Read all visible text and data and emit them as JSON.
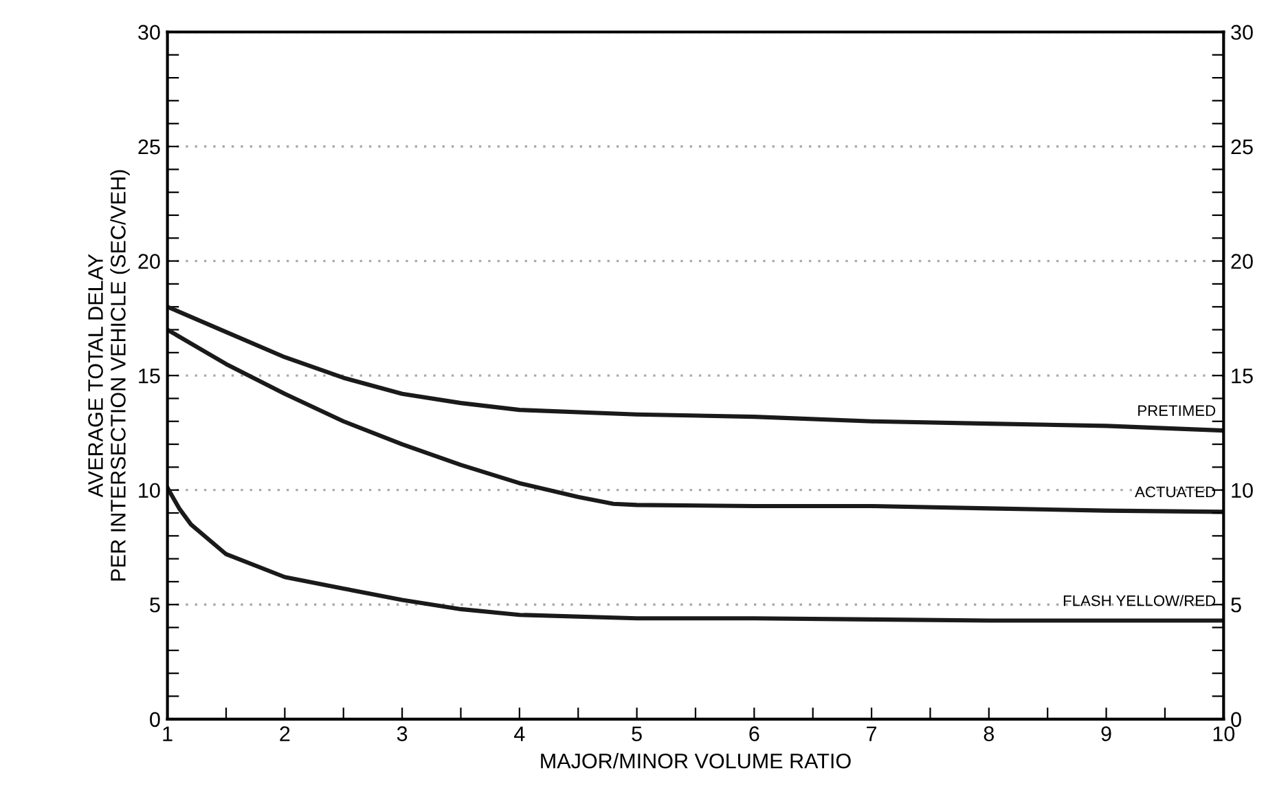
{
  "chart_data": {
    "type": "line",
    "xlabel": "MAJOR/MINOR VOLUME RATIO",
    "ylabel": "AVERAGE TOTAL DELAY\nPER INTERSECTION VEHICLE (SEC/VEH)",
    "xlim": [
      1,
      10
    ],
    "ylim": [
      0,
      30
    ],
    "y2lim": [
      0,
      30
    ],
    "xticks": [
      1,
      {
        "value": 1.5,
        "label": null
      },
      2,
      {
        "value": 2.5,
        "label": null
      },
      3,
      {
        "value": 3.5,
        "label": null
      },
      4,
      {
        "value": 4.5,
        "label": null
      },
      5,
      {
        "value": 5.5,
        "label": null
      },
      6,
      {
        "value": 6.5,
        "label": null
      },
      7,
      {
        "value": 7.5,
        "label": null
      },
      8,
      {
        "value": 8.5,
        "label": null
      },
      9,
      {
        "value": 9.5,
        "label": null
      },
      10
    ],
    "yticks": [
      0,
      {
        "value": 1,
        "label": null
      },
      {
        "value": 2,
        "label": null
      },
      {
        "value": 3,
        "label": null
      },
      {
        "value": 4,
        "label": null
      },
      5,
      {
        "value": 6,
        "label": null
      },
      {
        "value": 7,
        "label": null
      },
      {
        "value": 8,
        "label": null
      },
      {
        "value": 9,
        "label": null
      },
      10,
      {
        "value": 11,
        "label": null
      },
      {
        "value": 12,
        "label": null
      },
      {
        "value": 13,
        "label": null
      },
      {
        "value": 14,
        "label": null
      },
      15,
      {
        "value": 16,
        "label": null
      },
      {
        "value": 17,
        "label": null
      },
      {
        "value": 18,
        "label": null
      },
      {
        "value": 19,
        "label": null
      },
      20,
      {
        "value": 21,
        "label": null
      },
      {
        "value": 22,
        "label": null
      },
      {
        "value": 23,
        "label": null
      },
      {
        "value": 24,
        "label": null
      },
      25,
      {
        "value": 26,
        "label": null
      },
      {
        "value": 27,
        "label": null
      },
      {
        "value": 28,
        "label": null
      },
      {
        "value": 29,
        "label": null
      },
      30
    ],
    "y2ticks": [
      0,
      {
        "value": 1,
        "label": null
      },
      {
        "value": 2,
        "label": null
      },
      {
        "value": 3,
        "label": null
      },
      {
        "value": 4,
        "label": null
      },
      5,
      {
        "value": 6,
        "label": null
      },
      {
        "value": 7,
        "label": null
      },
      {
        "value": 8,
        "label": null
      },
      {
        "value": 9,
        "label": null
      },
      10,
      {
        "value": 11,
        "label": null
      },
      {
        "value": 12,
        "label": null
      },
      {
        "value": 13,
        "label": null
      },
      {
        "value": 14,
        "label": null
      },
      15,
      {
        "value": 16,
        "label": null
      },
      {
        "value": 17,
        "label": null
      },
      {
        "value": 18,
        "label": null
      },
      {
        "value": 19,
        "label": null
      },
      20,
      {
        "value": 21,
        "label": null
      },
      {
        "value": 22,
        "label": null
      },
      {
        "value": 23,
        "label": null
      },
      {
        "value": 24,
        "label": null
      },
      25,
      {
        "value": 26,
        "label": null
      },
      {
        "value": 27,
        "label": null
      },
      {
        "value": 28,
        "label": null
      },
      {
        "value": 29,
        "label": null
      },
      30
    ],
    "grid": "y",
    "legend": false,
    "marker": "none",
    "line_style": "solid",
    "series": [
      {
        "name": "PRETIMED",
        "color": "#1a1a1a",
        "x": [
          1,
          1.5,
          2,
          2.5,
          3,
          3.5,
          4,
          5,
          6,
          7,
          8,
          9,
          10
        ],
        "values": [
          18,
          16.9,
          15.8,
          14.9,
          14.2,
          13.8,
          13.5,
          13.3,
          13.2,
          13.0,
          12.9,
          12.8,
          12.6
        ]
      },
      {
        "name": "ACTUATED",
        "color": "#1a1a1a",
        "x": [
          1,
          1.5,
          2,
          2.5,
          3,
          3.5,
          4,
          4.5,
          4.8,
          5,
          6,
          7,
          8,
          9,
          10
        ],
        "values": [
          17,
          15.5,
          14.2,
          13.0,
          12.0,
          11.1,
          10.3,
          9.7,
          9.4,
          9.35,
          9.3,
          9.3,
          9.2,
          9.1,
          9.05
        ]
      },
      {
        "name": "FLASH YELLOW/RED",
        "color": "#1a1a1a",
        "x": [
          1,
          1.1,
          1.2,
          1.5,
          2,
          2.5,
          3,
          3.5,
          4,
          5,
          6,
          7,
          8,
          9,
          10
        ],
        "values": [
          10.1,
          9.2,
          8.5,
          7.2,
          6.2,
          5.7,
          5.2,
          4.8,
          4.55,
          4.4,
          4.4,
          4.35,
          4.3,
          4.3,
          4.3
        ]
      }
    ]
  }
}
